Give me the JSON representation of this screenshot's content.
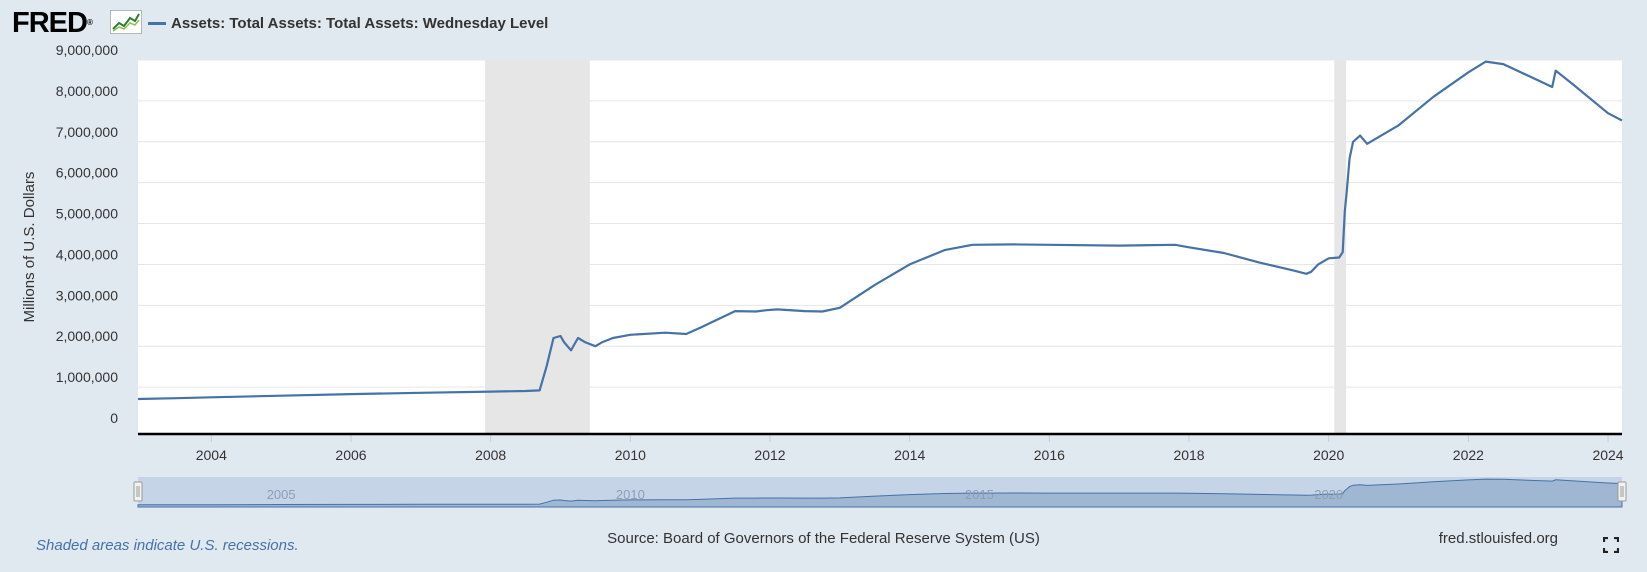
{
  "logo": {
    "text": "FRED",
    "reg": "®"
  },
  "legend": {
    "label": "Assets: Total Assets: Total Assets: Wednesday Level"
  },
  "colors": {
    "line": "#4572a7",
    "recession": "#e6e6e6",
    "grid": "#e6e6e6",
    "navigator_fill": "#98b2cf",
    "background": "#e1e9f0"
  },
  "footer": {
    "note": "Shaded areas indicate U.S. recessions.",
    "source": "Source: Board of Governors of the Federal Reserve System (US)",
    "url": "fred.stlouisfed.org"
  },
  "icons": {
    "fullscreen": "fullscreen-icon",
    "logo_graph": "line-graph-icon"
  },
  "chart_data": {
    "type": "line",
    "title": "",
    "xlabel": "",
    "ylabel": "Millions of U.S. Dollars",
    "xlim": [
      2002.95,
      2024.2
    ],
    "ylim": [
      0,
      9000000
    ],
    "yticks": [
      0,
      1000000,
      2000000,
      3000000,
      4000000,
      5000000,
      6000000,
      7000000,
      8000000,
      9000000
    ],
    "ytick_labels": [
      "0",
      "1,000,000",
      "2,000,000",
      "3,000,000",
      "4,000,000",
      "5,000,000",
      "6,000,000",
      "7,000,000",
      "8,000,000",
      "9,000,000"
    ],
    "xticks": [
      2004,
      2006,
      2008,
      2010,
      2012,
      2014,
      2016,
      2018,
      2020,
      2022,
      2024
    ],
    "xtick_labels": [
      "2004",
      "2006",
      "2008",
      "2010",
      "2012",
      "2014",
      "2016",
      "2018",
      "2020",
      "2022",
      "2024"
    ],
    "recessions": [
      [
        2007.92,
        2009.42
      ],
      [
        2020.08,
        2020.25
      ]
    ],
    "navigator_years": [
      "2005",
      "2010",
      "2015",
      "2020"
    ],
    "series": [
      {
        "name": "Assets: Total Assets: Total Assets: Wednesday Level",
        "x": [
          2002.95,
          2003.5,
          2004.0,
          2005.0,
          2006.0,
          2007.0,
          2008.0,
          2008.5,
          2008.7,
          2008.8,
          2008.9,
          2009.0,
          2009.05,
          2009.15,
          2009.25,
          2009.35,
          2009.5,
          2009.6,
          2009.75,
          2010.0,
          2010.5,
          2010.8,
          2011.0,
          2011.5,
          2011.8,
          2011.95,
          2012.1,
          2012.5,
          2012.75,
          2013.0,
          2013.5,
          2014.0,
          2014.5,
          2014.9,
          2015.5,
          2016.0,
          2017.0,
          2017.8,
          2018.0,
          2018.5,
          2019.0,
          2019.5,
          2019.68,
          2019.75,
          2019.85,
          2020.0,
          2020.15,
          2020.2,
          2020.23,
          2020.26,
          2020.3,
          2020.35,
          2020.45,
          2020.55,
          2021.0,
          2021.5,
          2022.0,
          2022.25,
          2022.5,
          2023.0,
          2023.2,
          2023.25,
          2023.5,
          2024.0,
          2024.2
        ],
        "y": [
          710000,
          730000,
          750000,
          790000,
          830000,
          860000,
          890000,
          905000,
          920000,
          1500000,
          2200000,
          2250000,
          2100000,
          1900000,
          2200000,
          2100000,
          2000000,
          2100000,
          2200000,
          2280000,
          2330000,
          2300000,
          2450000,
          2860000,
          2850000,
          2880000,
          2900000,
          2860000,
          2850000,
          2940000,
          3500000,
          4000000,
          4350000,
          4480000,
          4490000,
          4480000,
          4460000,
          4480000,
          4420000,
          4280000,
          4050000,
          3850000,
          3770000,
          3820000,
          4000000,
          4150000,
          4170000,
          4300000,
          5300000,
          5800000,
          6600000,
          7000000,
          7150000,
          6950000,
          7400000,
          8100000,
          8700000,
          8960000,
          8900000,
          8500000,
          8340000,
          8740000,
          8400000,
          7700000,
          7520000
        ]
      }
    ]
  }
}
